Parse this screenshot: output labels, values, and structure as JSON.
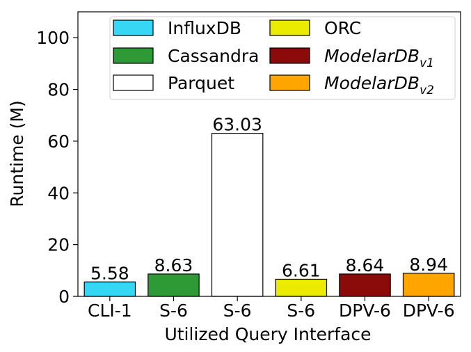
{
  "chart_data": {
    "type": "bar",
    "xlabel": "Utilized Query Interface",
    "ylabel": "Runtime (M)",
    "ylim": [
      0,
      110
    ],
    "yticks": [
      0,
      20,
      40,
      60,
      80,
      100
    ],
    "grid": false,
    "legend_position": "top",
    "categories": [
      "CLI-1",
      "S-6",
      "S-6",
      "S-6",
      "DPV-6",
      "DPV-6"
    ],
    "bars": [
      {
        "series": "InfluxDB",
        "category": "CLI-1",
        "value": 5.58,
        "label": "5.58",
        "color": "#36d7f5"
      },
      {
        "series": "Cassandra",
        "category": "S-6",
        "value": 8.63,
        "label": "8.63",
        "color": "#2e9a35"
      },
      {
        "series": "Parquet",
        "category": "S-6",
        "value": 63.03,
        "label": "63.03",
        "color": "#ffffff"
      },
      {
        "series": "ORC",
        "category": "S-6",
        "value": 6.61,
        "label": "6.61",
        "color": "#ebeb00"
      },
      {
        "series": "ModelarDB_v1",
        "category": "DPV-6",
        "value": 8.64,
        "label": "8.64",
        "color": "#8b0a0a"
      },
      {
        "series": "ModelarDB_v2",
        "category": "DPV-6",
        "value": 8.94,
        "label": "8.94",
        "color": "#ffa500"
      }
    ],
    "legend": [
      {
        "name": "InfluxDB",
        "text": "InfluxDB",
        "sub": "",
        "italic": false,
        "color": "#36d7f5"
      },
      {
        "name": "Cassandra",
        "text": "Cassandra",
        "sub": "",
        "italic": false,
        "color": "#2e9a35"
      },
      {
        "name": "Parquet",
        "text": "Parquet",
        "sub": "",
        "italic": false,
        "color": "#ffffff"
      },
      {
        "name": "ORC",
        "text": "ORC",
        "sub": "",
        "italic": false,
        "color": "#ebeb00"
      },
      {
        "name": "ModelarDB_v1",
        "text": "ModelarDB",
        "sub": "v1",
        "italic": true,
        "color": "#8b0a0a"
      },
      {
        "name": "ModelarDB_v2",
        "text": "ModelarDB",
        "sub": "v2",
        "italic": true,
        "color": "#ffa500"
      }
    ]
  }
}
